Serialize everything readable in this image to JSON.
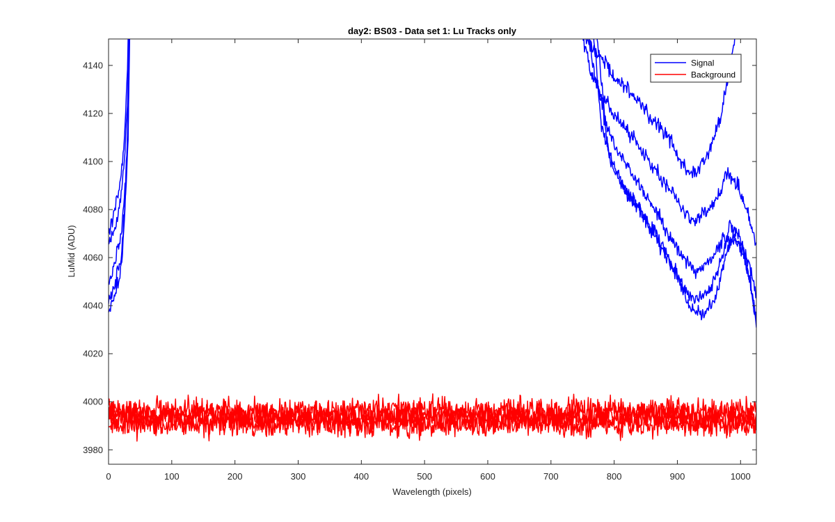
{
  "chart_data": {
    "type": "line",
    "title": "day2: BS03 - Data set 1: Lu Tracks only",
    "xlabel": "Wavelength (pixels)",
    "ylabel": "LuMid (ADU)",
    "xlim": [
      0,
      1025
    ],
    "ylim": [
      3974,
      4151
    ],
    "xticks": [
      "0",
      "100",
      "200",
      "300",
      "400",
      "500",
      "600",
      "700",
      "800",
      "900",
      "1000"
    ],
    "yticks": [
      "3980",
      "4000",
      "4020",
      "4040",
      "4060",
      "4080",
      "4100",
      "4120",
      "4140"
    ],
    "grid": false,
    "legend_position": "top-right",
    "colors": {
      "signal": "#0000ff",
      "background": "#ff0000"
    },
    "legend": [
      {
        "label": "Signal",
        "color": "#0000ff"
      },
      {
        "label": "Background",
        "color": "#ff0000"
      }
    ],
    "series": [
      {
        "name": "Signal",
        "color": "#0000ff",
        "noise": 1.5,
        "left": [
          [
            0,
            4070
          ],
          [
            10,
            4080
          ],
          [
            20,
            4094
          ],
          [
            25,
            4108
          ],
          [
            28,
            4125
          ],
          [
            30,
            4140
          ],
          [
            32,
            4160
          ]
        ],
        "right": [
          [
            740,
            4160
          ],
          [
            760,
            4150
          ],
          [
            780,
            4143
          ],
          [
            800,
            4135
          ],
          [
            830,
            4128
          ],
          [
            860,
            4118
          ],
          [
            890,
            4108
          ],
          [
            910,
            4097
          ],
          [
            930,
            4095
          ],
          [
            950,
            4103
          ],
          [
            970,
            4120
          ],
          [
            985,
            4143
          ],
          [
            995,
            4157
          ],
          [
            1000,
            4160
          ]
        ]
      },
      {
        "name": "Signal",
        "color": "#0000ff",
        "noise": 1.5,
        "left": [
          [
            0,
            4064
          ],
          [
            10,
            4072
          ],
          [
            20,
            4086
          ],
          [
            26,
            4104
          ],
          [
            30,
            4125
          ],
          [
            33,
            4160
          ]
        ],
        "right": [
          [
            745,
            4160
          ],
          [
            760,
            4140
          ],
          [
            780,
            4128
          ],
          [
            800,
            4119
          ],
          [
            830,
            4110
          ],
          [
            860,
            4098
          ],
          [
            890,
            4088
          ],
          [
            910,
            4079
          ],
          [
            930,
            4076
          ],
          [
            950,
            4080
          ],
          [
            965,
            4086
          ],
          [
            980,
            4096
          ],
          [
            995,
            4090
          ],
          [
            1010,
            4080
          ],
          [
            1025,
            4065
          ]
        ]
      },
      {
        "name": "Signal",
        "color": "#0000ff",
        "noise": 1.5,
        "left": [
          [
            0,
            4050
          ],
          [
            10,
            4058
          ],
          [
            20,
            4070
          ],
          [
            27,
            4092
          ],
          [
            31,
            4115
          ],
          [
            34,
            4160
          ]
        ],
        "right": [
          [
            755,
            4160
          ],
          [
            770,
            4135
          ],
          [
            790,
            4113
          ],
          [
            810,
            4102
          ],
          [
            830,
            4094
          ],
          [
            860,
            4082
          ],
          [
            890,
            4068
          ],
          [
            910,
            4060
          ],
          [
            930,
            4054
          ],
          [
            950,
            4058
          ],
          [
            970,
            4066
          ],
          [
            985,
            4074
          ],
          [
            1000,
            4068
          ],
          [
            1015,
            4056
          ],
          [
            1025,
            4044
          ]
        ]
      },
      {
        "name": "Signal",
        "color": "#0000ff",
        "noise": 1.5,
        "left": [
          [
            0,
            4042
          ],
          [
            10,
            4048
          ],
          [
            20,
            4060
          ],
          [
            27,
            4085
          ],
          [
            31,
            4110
          ],
          [
            33,
            4160
          ]
        ],
        "right": [
          [
            765,
            4160
          ],
          [
            780,
            4115
          ],
          [
            800,
            4097
          ],
          [
            820,
            4088
          ],
          [
            850,
            4076
          ],
          [
            880,
            4062
          ],
          [
            905,
            4050
          ],
          [
            925,
            4042
          ],
          [
            945,
            4044
          ],
          [
            965,
            4055
          ],
          [
            978,
            4066
          ],
          [
            990,
            4068
          ],
          [
            1005,
            4062
          ],
          [
            1015,
            4050
          ],
          [
            1025,
            4035
          ]
        ]
      },
      {
        "name": "Signal",
        "color": "#0000ff",
        "noise": 1.5,
        "left": [
          [
            0,
            4038
          ],
          [
            10,
            4044
          ],
          [
            20,
            4055
          ],
          [
            26,
            4080
          ],
          [
            30,
            4110
          ],
          [
            32,
            4160
          ]
        ],
        "right": [
          [
            770,
            4160
          ],
          [
            790,
            4105
          ],
          [
            810,
            4090
          ],
          [
            840,
            4080
          ],
          [
            870,
            4068
          ],
          [
            900,
            4052
          ],
          [
            920,
            4039
          ],
          [
            940,
            4036
          ],
          [
            960,
            4042
          ],
          [
            975,
            4060
          ],
          [
            985,
            4068
          ],
          [
            1000,
            4066
          ],
          [
            1015,
            4050
          ],
          [
            1025,
            4032
          ]
        ]
      },
      {
        "name": "Background",
        "color": "#ff0000",
        "level": 3996.5,
        "noise": 2.6
      },
      {
        "name": "Background",
        "color": "#ff0000",
        "level": 3994.5,
        "noise": 2.6
      },
      {
        "name": "Background",
        "color": "#ff0000",
        "level": 3992.5,
        "noise": 2.6
      },
      {
        "name": "Background",
        "color": "#ff0000",
        "level": 3990.5,
        "noise": 2.6
      }
    ]
  }
}
